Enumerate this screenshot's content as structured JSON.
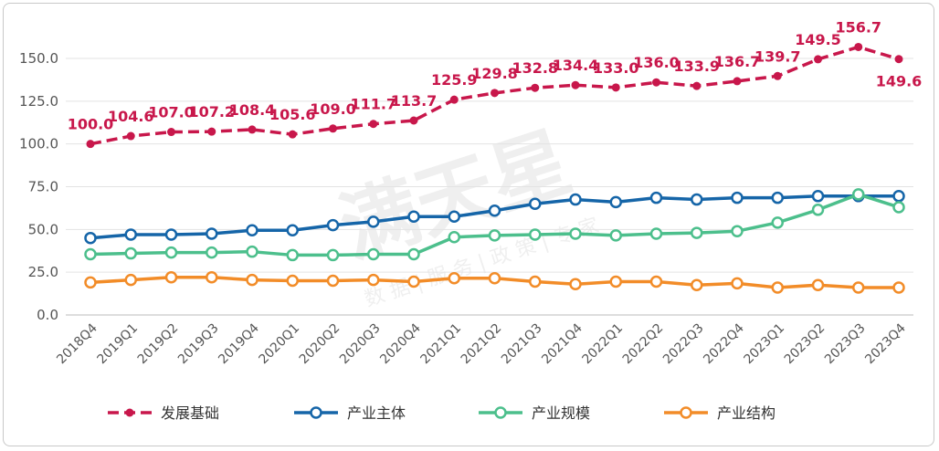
{
  "chart_data": {
    "type": "line",
    "title": "",
    "xlabel": "",
    "ylabel": "",
    "ylim": [
      0,
      150
    ],
    "yticks": [
      "0.0",
      "25.0",
      "50.0",
      "75.0",
      "100.0",
      "125.0",
      "150.0"
    ],
    "grid": "horizontal",
    "legend_position": "bottom",
    "categories": [
      "2018Q4",
      "2019Q1",
      "2019Q2",
      "2019Q3",
      "2019Q4",
      "2020Q1",
      "2020Q2",
      "2020Q3",
      "2020Q4",
      "2021Q1",
      "2021Q2",
      "2021Q3",
      "2021Q4",
      "2022Q1",
      "2022Q2",
      "2022Q3",
      "2022Q4",
      "2023Q1",
      "2023Q2",
      "2023Q3",
      "2023Q4"
    ],
    "series": [
      {
        "name": "发展基础",
        "color": "#c8174b",
        "dashed": true,
        "filled_markers": true,
        "show_labels": true,
        "values": [
          100.0,
          104.6,
          107.0,
          107.2,
          108.4,
          105.6,
          109.0,
          111.7,
          113.7,
          125.9,
          129.8,
          132.8,
          134.4,
          133.0,
          136.0,
          133.9,
          136.7,
          139.7,
          149.5,
          156.7,
          149.6
        ]
      },
      {
        "name": "产业主体",
        "color": "#1565a8",
        "dashed": false,
        "filled_markers": false,
        "show_labels": false,
        "values": [
          45,
          47,
          47,
          47.5,
          49.5,
          49.5,
          52.5,
          54.5,
          57.5,
          57.5,
          61,
          65,
          67.5,
          66,
          68.5,
          67.5,
          68.5,
          68.5,
          69.5,
          69.5,
          69.5
        ]
      },
      {
        "name": "产业规模",
        "color": "#4cbf8c",
        "dashed": false,
        "filled_markers": false,
        "show_labels": false,
        "values": [
          35.5,
          36,
          36.5,
          36.5,
          37,
          35,
          35,
          35.5,
          35.5,
          45.5,
          46.5,
          47,
          47.5,
          46.5,
          47.5,
          48,
          49,
          54,
          61.5,
          70.5,
          63
        ]
      },
      {
        "name": "产业结构",
        "color": "#f28c28",
        "dashed": false,
        "filled_markers": false,
        "show_labels": false,
        "values": [
          19,
          20.5,
          22,
          22,
          20.5,
          20,
          20,
          20.5,
          19.5,
          21.5,
          21.5,
          19.5,
          18,
          19.5,
          19.5,
          17.5,
          18.5,
          16,
          17.5,
          16,
          16
        ]
      }
    ]
  },
  "watermark": {
    "main": "满天星",
    "sub": "数 据 | 服 务 | 政 策 | 专 家"
  }
}
